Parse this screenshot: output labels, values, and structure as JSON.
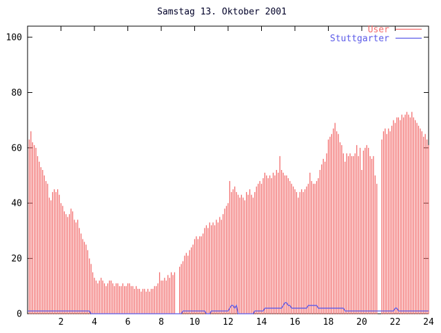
{
  "window": {
    "background": "#ffffff"
  },
  "colors": {
    "frame": "#000000",
    "text": "#000000",
    "title": "#000028",
    "user": "#f26c6c",
    "stuttgarter": "#5a5ae8"
  },
  "chart_data": {
    "type": "bar",
    "title": "Samstag 13. Oktober 2001",
    "xlabel": "",
    "ylabel": "",
    "xlim": [
      0,
      24
    ],
    "ylim": [
      0,
      104
    ],
    "x_ticks": [
      2,
      4,
      6,
      8,
      10,
      12,
      14,
      16,
      18,
      20,
      22,
      24
    ],
    "y_ticks": [
      0,
      20,
      40,
      60,
      80,
      100
    ],
    "grid": false,
    "legend_position": "top-right-inside",
    "x_start": 0.1,
    "x_step": 0.1,
    "series": [
      {
        "name": "User",
        "type": "impulses",
        "color": "#f26c6c",
        "values": [
          63,
          66,
          62,
          61,
          60,
          57,
          55,
          53,
          52,
          50,
          48,
          47,
          42,
          41,
          44,
          45,
          44,
          45,
          43,
          40,
          39,
          37,
          36,
          35,
          36,
          38,
          37,
          34,
          33,
          34,
          31,
          29,
          27,
          26,
          25,
          23,
          20,
          18,
          15,
          13,
          12,
          11,
          12,
          13,
          12,
          11,
          10,
          11,
          12,
          12,
          11,
          10,
          11,
          11,
          10,
          10,
          11,
          10,
          10,
          11,
          11,
          10,
          10,
          9,
          10,
          9,
          9,
          8,
          9,
          9,
          8,
          9,
          8,
          9,
          9,
          10,
          10,
          11,
          15,
          12,
          12,
          13,
          12,
          14,
          13,
          15,
          14,
          15,
          0,
          0,
          17,
          18,
          19,
          21,
          22,
          21,
          23,
          24,
          25,
          27,
          28,
          27,
          28,
          28,
          29,
          31,
          32,
          31,
          33,
          32,
          33,
          32,
          34,
          33,
          35,
          34,
          36,
          38,
          39,
          40,
          48,
          44,
          45,
          46,
          44,
          43,
          42,
          43,
          42,
          41,
          44,
          43,
          45,
          43,
          42,
          44,
          46,
          47,
          48,
          47,
          49,
          51,
          50,
          49,
          50,
          49,
          51,
          50,
          52,
          51,
          57,
          52,
          51,
          50,
          50,
          49,
          48,
          47,
          46,
          45,
          44,
          42,
          44,
          45,
          44,
          45,
          46,
          47,
          51,
          48,
          47,
          47,
          48,
          49,
          52,
          54,
          56,
          55,
          58,
          63,
          64,
          65,
          67,
          69,
          66,
          65,
          62,
          61,
          58,
          55,
          58,
          57,
          58,
          57,
          57,
          58,
          61,
          57,
          60,
          52,
          59,
          60,
          61,
          60,
          57,
          56,
          57,
          50,
          47,
          0,
          0,
          63,
          66,
          67,
          65,
          67,
          66,
          68,
          70,
          69,
          71,
          71,
          70,
          72,
          71,
          72,
          73,
          72,
          71,
          73,
          71,
          70,
          69,
          68,
          67,
          66,
          64,
          65,
          63,
          61
        ]
      },
      {
        "name": "Stuttgarter",
        "type": "line",
        "color": "#5a5ae8",
        "values": [
          1,
          1,
          1,
          1,
          1,
          1,
          1,
          1,
          1,
          1,
          1,
          1,
          1,
          1,
          1,
          1,
          1,
          1,
          1,
          1,
          1,
          1,
          1,
          1,
          1,
          1,
          1,
          1,
          1,
          1,
          1,
          1,
          1,
          1,
          1,
          1,
          1,
          0,
          0,
          0,
          0,
          0,
          0,
          0,
          0,
          0,
          0,
          0,
          0,
          0,
          0,
          0,
          0,
          0,
          0,
          0,
          0,
          0,
          0,
          0,
          0,
          0,
          0,
          0,
          0,
          0,
          0,
          0,
          0,
          0,
          0,
          0,
          0,
          0,
          0,
          0,
          0,
          0,
          0,
          0,
          0,
          0,
          0,
          0,
          0,
          0,
          0,
          0,
          0,
          0,
          0,
          0,
          1,
          1,
          1,
          1,
          1,
          1,
          1,
          1,
          1,
          1,
          1,
          1,
          1,
          1,
          0,
          0,
          0,
          1,
          1,
          1,
          1,
          1,
          1,
          1,
          1,
          1,
          1,
          1,
          2,
          3,
          3,
          2,
          3,
          0,
          0,
          0,
          0,
          0,
          0,
          0,
          0,
          0,
          0,
          1,
          1,
          1,
          1,
          1,
          1,
          2,
          2,
          2,
          2,
          2,
          2,
          2,
          2,
          2,
          2,
          2,
          3,
          4,
          4,
          3,
          3,
          2,
          2,
          2,
          2,
          2,
          2,
          2,
          2,
          2,
          2,
          3,
          3,
          3,
          3,
          3,
          3,
          2,
          2,
          2,
          2,
          2,
          2,
          2,
          2,
          2,
          2,
          2,
          2,
          2,
          2,
          2,
          2,
          1,
          1,
          1,
          1,
          1,
          1,
          1,
          1,
          1,
          1,
          1,
          1,
          1,
          1,
          1,
          1,
          1,
          1,
          1,
          1,
          1,
          1,
          1,
          1,
          1,
          1,
          1,
          1,
          1,
          1,
          2,
          2,
          1,
          1,
          1,
          1,
          1,
          1,
          1,
          1,
          1,
          1,
          1,
          1,
          1,
          1,
          1,
          1,
          1,
          1,
          1
        ]
      }
    ]
  },
  "legend": {
    "entries": [
      {
        "label": "User",
        "color": "#f26c6c"
      },
      {
        "label": "Stuttgarter",
        "color": "#5a5ae8"
      }
    ]
  }
}
